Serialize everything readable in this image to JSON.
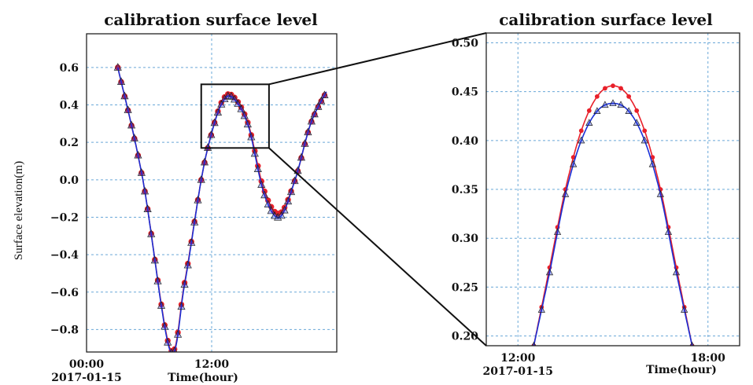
{
  "colors": {
    "observed": "#e8202a",
    "simulated": "#1a2fd6",
    "marker_outline": "#222222",
    "grid": "#6aa8d8"
  },
  "icons": {
    "observed_marker": "circle",
    "simulated_marker": "triangle"
  },
  "chart_data": [
    {
      "type": "line",
      "title": "calibration surface level",
      "xlabel": "Time(hour)",
      "ylabel": "Surface elevation(m)",
      "x_unit": "hour",
      "xlim": [
        0,
        24
      ],
      "ylim": [
        -0.92,
        0.78
      ],
      "xticks": [
        {
          "value": 0,
          "label": "00:00",
          "sublabel": "2017-01-15"
        },
        {
          "value": 12,
          "label": "12:00",
          "sublabel": ""
        }
      ],
      "yticks": [
        {
          "value": -0.8,
          "label": "−0.8"
        },
        {
          "value": -0.6,
          "label": "−0.6"
        },
        {
          "value": -0.4,
          "label": "−0.4"
        },
        {
          "value": -0.2,
          "label": "−0.2"
        },
        {
          "value": 0.0,
          "label": "0.0"
        },
        {
          "value": 0.2,
          "label": "0.2"
        },
        {
          "value": 0.4,
          "label": "0.4"
        },
        {
          "value": 0.6,
          "label": "0.6"
        }
      ],
      "grid": true,
      "zoom_box": {
        "x": [
          11,
          17.5
        ],
        "y": [
          0.17,
          0.51
        ]
      },
      "series": [
        {
          "values": [
            [
              3.0,
              0.6
            ],
            [
              5.4,
              0.0
            ],
            [
              8.0,
              -0.9
            ],
            [
              9.4,
              -0.55
            ],
            [
              11.0,
              0.0
            ],
            [
              12.0,
              0.25
            ],
            [
              13.0,
              0.42
            ],
            [
              14.0,
              0.45
            ],
            [
              15.5,
              0.3
            ],
            [
              17.0,
              -0.05
            ],
            [
              18.5,
              -0.18
            ],
            [
              20.0,
              0.0
            ],
            [
              21.5,
              0.3
            ],
            [
              23.0,
              0.47
            ]
          ]
        },
        {
          "values": [
            [
              3.0,
              0.6
            ],
            [
              5.4,
              0.0
            ],
            [
              8.0,
              -0.91
            ],
            [
              9.4,
              -0.56
            ],
            [
              11.0,
              0.0
            ],
            [
              12.0,
              0.25
            ],
            [
              13.0,
              0.41
            ],
            [
              14.0,
              0.44
            ],
            [
              15.5,
              0.29
            ],
            [
              17.0,
              -0.07
            ],
            [
              18.5,
              -0.2
            ],
            [
              20.0,
              0.0
            ],
            [
              21.5,
              0.3
            ],
            [
              23.0,
              0.47
            ]
          ]
        }
      ]
    },
    {
      "type": "line",
      "title": "calibration surface level",
      "xlabel": "Time(hour)",
      "x_unit": "hour",
      "xlim": [
        11,
        19
      ],
      "ylim": [
        0.19,
        0.51
      ],
      "xticks": [
        {
          "value": 12,
          "label": "12:00",
          "sublabel": "2017-01-15"
        },
        {
          "value": 18,
          "label": "18:00",
          "sublabel": ""
        }
      ],
      "yticks": [
        {
          "value": 0.2,
          "label": "0.20"
        },
        {
          "value": 0.25,
          "label": "0.25"
        },
        {
          "value": 0.3,
          "label": "0.30"
        },
        {
          "value": 0.35,
          "label": "0.35"
        },
        {
          "value": 0.4,
          "label": "0.40"
        },
        {
          "value": 0.45,
          "label": "0.45"
        },
        {
          "value": 0.5,
          "label": "0.50"
        }
      ],
      "grid": true,
      "series": [
        {
          "values": [
            [
              12.5,
              0.19
            ],
            [
              13.0,
              0.27
            ],
            [
              13.5,
              0.35
            ],
            [
              14.0,
              0.41
            ],
            [
              14.5,
              0.445
            ],
            [
              15.0,
              0.456
            ],
            [
              15.5,
              0.445
            ],
            [
              16.0,
              0.41
            ],
            [
              16.5,
              0.35
            ],
            [
              17.0,
              0.27
            ],
            [
              17.5,
              0.19
            ]
          ]
        },
        {
          "values": [
            [
              12.5,
              0.19
            ],
            [
              13.0,
              0.265
            ],
            [
              13.5,
              0.345
            ],
            [
              14.0,
              0.4
            ],
            [
              14.5,
              0.43
            ],
            [
              15.0,
              0.438
            ],
            [
              15.5,
              0.43
            ],
            [
              16.0,
              0.4
            ],
            [
              16.5,
              0.345
            ],
            [
              17.0,
              0.265
            ],
            [
              17.5,
              0.19
            ]
          ]
        }
      ]
    }
  ]
}
